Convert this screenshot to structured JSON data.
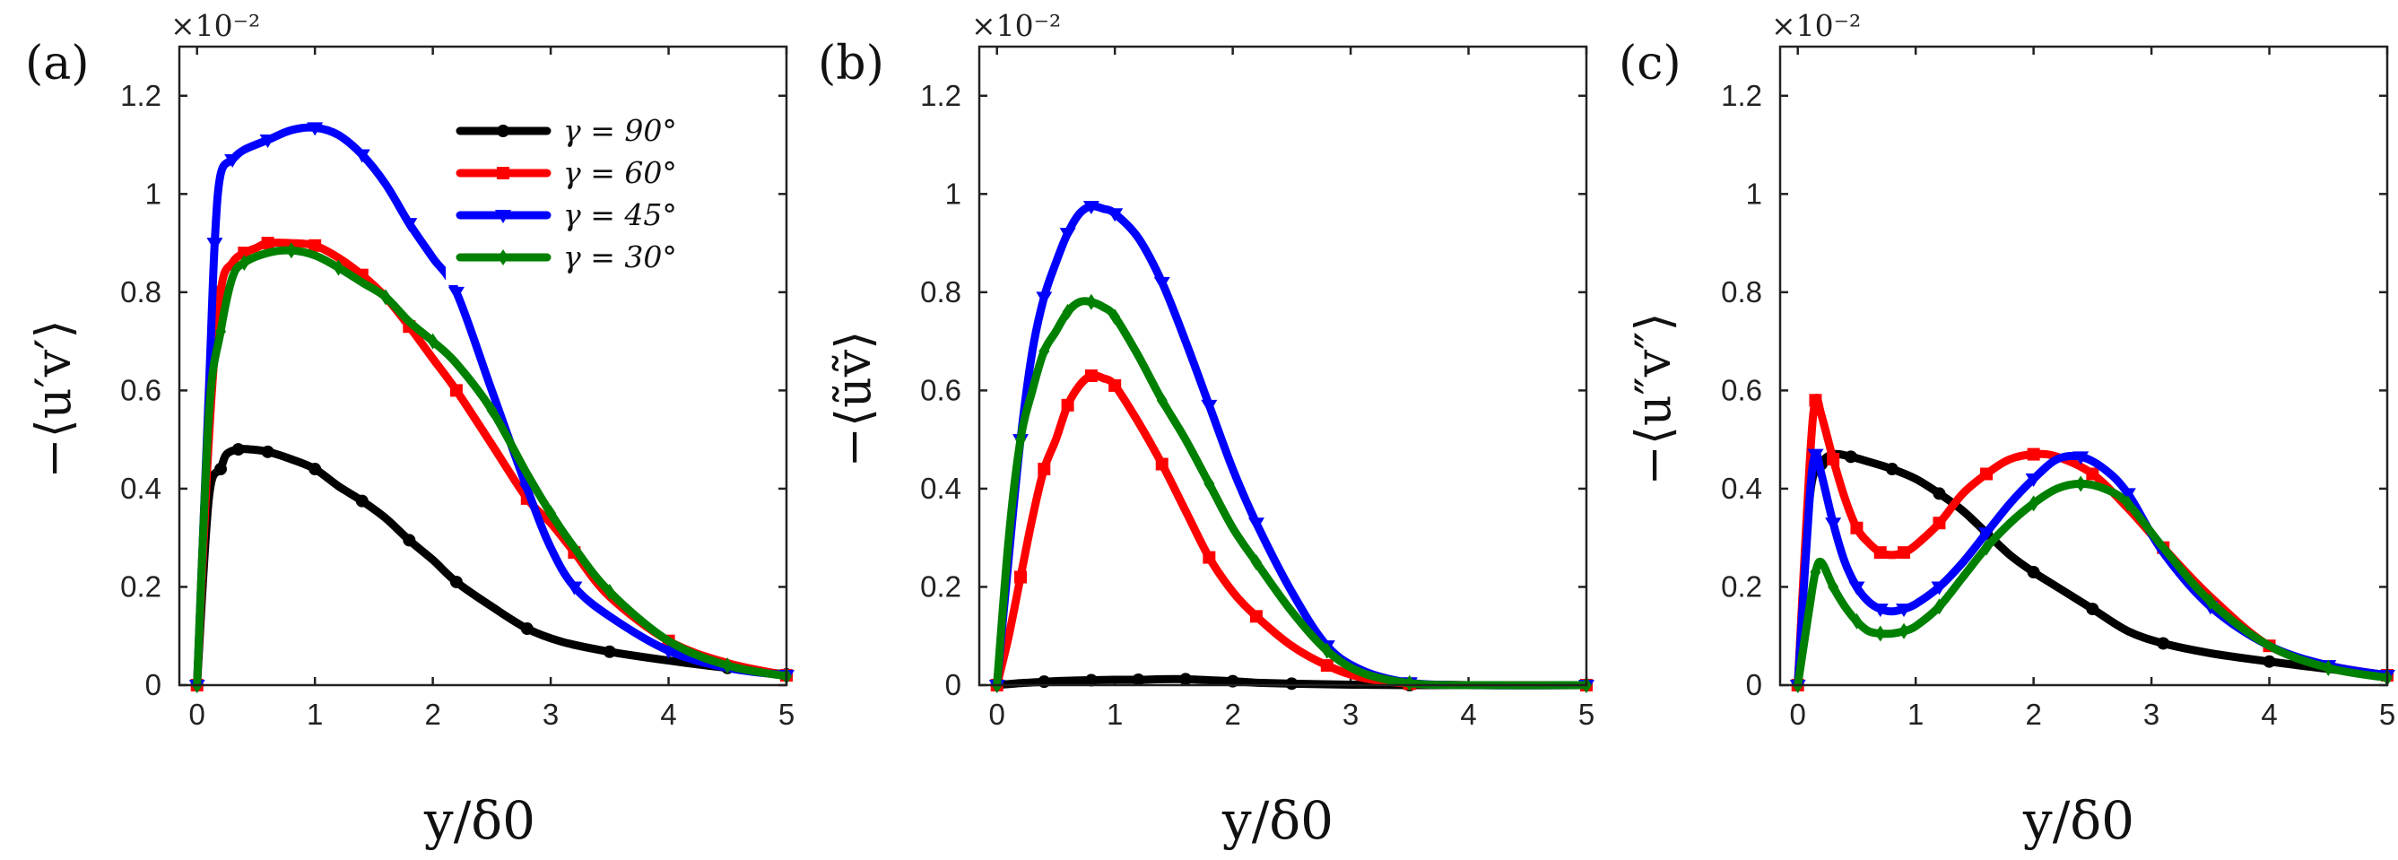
{
  "figure": {
    "legend": {
      "location": "top-right of panel (a)"
    },
    "colors": {
      "g90": "#000000",
      "g60": "#ff0000",
      "g45": "#0000ff",
      "g30": "#008000"
    }
  },
  "chart_data": [
    {
      "type": "line",
      "panel_label": "(a)",
      "title": "",
      "xlabel": "y/δ0",
      "ylabel": "−⟨u′v′⟩",
      "multiplier": "×10⁻²",
      "xlim": [
        -0.15,
        5
      ],
      "ylim": [
        0,
        1.3
      ],
      "xticks": [
        "0",
        "1",
        "2",
        "3",
        "4",
        "5"
      ],
      "yticks": [
        "0",
        "0.2",
        "0.4",
        "0.6",
        "0.8",
        "1",
        "1.2"
      ],
      "series": [
        {
          "name": "γ = 90°",
          "color": "#000000",
          "marker": "circle",
          "x": [
            0,
            0.1,
            0.2,
            0.25,
            0.35,
            0.45,
            0.6,
            0.8,
            1.0,
            1.2,
            1.4,
            1.6,
            1.8,
            2.0,
            2.2,
            2.5,
            2.8,
            3.1,
            3.5,
            4.0,
            4.5,
            5.0
          ],
          "y": [
            0,
            0.38,
            0.44,
            0.47,
            0.48,
            0.48,
            0.475,
            0.46,
            0.44,
            0.405,
            0.375,
            0.34,
            0.295,
            0.255,
            0.21,
            0.16,
            0.115,
            0.088,
            0.068,
            0.05,
            0.035,
            0.022
          ]
        },
        {
          "name": "γ = 60°",
          "color": "#ff0000",
          "marker": "square",
          "x": [
            0,
            0.1,
            0.2,
            0.3,
            0.4,
            0.5,
            0.6,
            0.8,
            1.0,
            1.2,
            1.4,
            1.6,
            1.8,
            2.0,
            2.2,
            2.5,
            2.8,
            3.0,
            3.2,
            3.5,
            4.0,
            4.5,
            5.0
          ],
          "y": [
            0,
            0.5,
            0.8,
            0.86,
            0.88,
            0.89,
            0.9,
            0.9,
            0.895,
            0.87,
            0.835,
            0.79,
            0.73,
            0.665,
            0.6,
            0.49,
            0.38,
            0.33,
            0.27,
            0.18,
            0.09,
            0.045,
            0.02
          ]
        },
        {
          "name": "γ = 45°",
          "color": "#0000ff",
          "marker": "triangle-down",
          "x": [
            0,
            0.1,
            0.15,
            0.2,
            0.3,
            0.4,
            0.6,
            0.8,
            1.0,
            1.2,
            1.4,
            1.6,
            1.8,
            2.0,
            2.2,
            2.5,
            2.8,
            3.0,
            3.2,
            3.5,
            4.0,
            4.5,
            5.0
          ],
          "y": [
            0,
            0.6,
            0.9,
            1.04,
            1.07,
            1.09,
            1.11,
            1.13,
            1.135,
            1.12,
            1.08,
            1.02,
            0.94,
            0.87,
            0.8,
            0.6,
            0.4,
            0.28,
            0.2,
            0.14,
            0.07,
            0.035,
            0.02
          ]
        },
        {
          "name": "γ = 30°",
          "color": "#008000",
          "marker": "diamond",
          "x": [
            0,
            0.1,
            0.2,
            0.3,
            0.4,
            0.6,
            0.8,
            1.0,
            1.2,
            1.4,
            1.6,
            1.8,
            2.0,
            2.2,
            2.5,
            2.8,
            3.0,
            3.2,
            3.5,
            4.0,
            4.5,
            5.0
          ],
          "y": [
            0,
            0.55,
            0.72,
            0.83,
            0.86,
            0.88,
            0.885,
            0.875,
            0.85,
            0.82,
            0.79,
            0.74,
            0.7,
            0.655,
            0.56,
            0.43,
            0.35,
            0.28,
            0.19,
            0.09,
            0.04,
            0.018
          ]
        }
      ]
    },
    {
      "type": "line",
      "panel_label": "(b)",
      "title": "",
      "xlabel": "y/δ0",
      "ylabel": "−⟨ũṽ⟩",
      "multiplier": "×10⁻²",
      "xlim": [
        -0.15,
        5
      ],
      "ylim": [
        0,
        1.3
      ],
      "xticks": [
        "0",
        "1",
        "2",
        "3",
        "4",
        "5"
      ],
      "yticks": [
        "0",
        "0.2",
        "0.4",
        "0.6",
        "0.8",
        "1",
        "1.2"
      ],
      "series": [
        {
          "name": "γ = 90°",
          "color": "#000000",
          "marker": "circle",
          "x": [
            0,
            0.2,
            0.4,
            0.6,
            0.8,
            1.0,
            1.2,
            1.4,
            1.6,
            1.8,
            2.0,
            2.2,
            2.5,
            3.0,
            3.5,
            4.0,
            5.0
          ],
          "y": [
            0,
            0.004,
            0.007,
            0.009,
            0.01,
            0.011,
            0.011,
            0.012,
            0.012,
            0.01,
            0.008,
            0.005,
            0.003,
            0.001,
            0,
            0,
            0
          ]
        },
        {
          "name": "γ = 60°",
          "color": "#ff0000",
          "marker": "square",
          "x": [
            0,
            0.1,
            0.2,
            0.3,
            0.4,
            0.5,
            0.6,
            0.7,
            0.8,
            0.9,
            1.0,
            1.2,
            1.4,
            1.6,
            1.8,
            2.0,
            2.2,
            2.5,
            2.8,
            3.1,
            3.5,
            4.0,
            5.0
          ],
          "y": [
            0,
            0.1,
            0.22,
            0.34,
            0.44,
            0.5,
            0.57,
            0.61,
            0.63,
            0.625,
            0.61,
            0.535,
            0.45,
            0.355,
            0.26,
            0.19,
            0.14,
            0.08,
            0.04,
            0.015,
            0.003,
            0,
            0
          ]
        },
        {
          "name": "γ = 45°",
          "color": "#0000ff",
          "marker": "triangle-down",
          "x": [
            0,
            0.1,
            0.2,
            0.3,
            0.4,
            0.5,
            0.6,
            0.7,
            0.8,
            0.9,
            1.0,
            1.2,
            1.4,
            1.6,
            1.8,
            2.0,
            2.2,
            2.5,
            2.8,
            3.1,
            3.5,
            4.0,
            5.0
          ],
          "y": [
            0,
            0.26,
            0.5,
            0.68,
            0.79,
            0.86,
            0.92,
            0.96,
            0.975,
            0.97,
            0.96,
            0.91,
            0.82,
            0.7,
            0.57,
            0.44,
            0.33,
            0.19,
            0.08,
            0.03,
            0.005,
            0,
            0
          ]
        },
        {
          "name": "γ = 30°",
          "color": "#008000",
          "marker": "diamond",
          "x": [
            0,
            0.1,
            0.2,
            0.3,
            0.4,
            0.5,
            0.6,
            0.7,
            0.8,
            0.9,
            1.0,
            1.2,
            1.4,
            1.6,
            1.8,
            2.0,
            2.2,
            2.5,
            2.8,
            3.1,
            3.5,
            4.0,
            5.0
          ],
          "y": [
            0,
            0.3,
            0.5,
            0.6,
            0.68,
            0.72,
            0.76,
            0.78,
            0.78,
            0.77,
            0.75,
            0.67,
            0.58,
            0.5,
            0.41,
            0.32,
            0.25,
            0.15,
            0.07,
            0.025,
            0.004,
            0,
            0
          ]
        }
      ]
    },
    {
      "type": "line",
      "panel_label": "(c)",
      "title": "",
      "xlabel": "y/δ0",
      "ylabel": "−⟨u″v″⟩",
      "multiplier": "×10⁻²",
      "xlim": [
        -0.15,
        5
      ],
      "ylim": [
        0,
        1.3
      ],
      "xticks": [
        "0",
        "1",
        "2",
        "3",
        "4",
        "5"
      ],
      "yticks": [
        "0",
        "0.2",
        "0.4",
        "0.6",
        "0.8",
        "1",
        "1.2"
      ],
      "series": [
        {
          "name": "γ = 90°",
          "color": "#000000",
          "marker": "circle",
          "x": [
            0,
            0.1,
            0.2,
            0.3,
            0.45,
            0.6,
            0.8,
            1.0,
            1.2,
            1.4,
            1.6,
            1.8,
            2.0,
            2.2,
            2.5,
            2.8,
            3.1,
            3.5,
            4.0,
            4.5,
            5.0
          ],
          "y": [
            0,
            0.38,
            0.45,
            0.47,
            0.465,
            0.455,
            0.44,
            0.42,
            0.39,
            0.355,
            0.31,
            0.265,
            0.23,
            0.2,
            0.155,
            0.11,
            0.085,
            0.065,
            0.048,
            0.033,
            0.02
          ]
        },
        {
          "name": "γ = 60°",
          "color": "#ff0000",
          "marker": "square",
          "x": [
            0,
            0.1,
            0.15,
            0.2,
            0.3,
            0.4,
            0.5,
            0.6,
            0.7,
            0.8,
            0.9,
            1.0,
            1.2,
            1.4,
            1.6,
            1.8,
            2.0,
            2.2,
            2.5,
            2.8,
            3.1,
            3.5,
            4.0,
            4.5,
            5.0
          ],
          "y": [
            0,
            0.45,
            0.58,
            0.55,
            0.46,
            0.38,
            0.32,
            0.29,
            0.27,
            0.265,
            0.27,
            0.285,
            0.33,
            0.39,
            0.43,
            0.46,
            0.47,
            0.465,
            0.43,
            0.36,
            0.28,
            0.18,
            0.08,
            0.04,
            0.02
          ]
        },
        {
          "name": "γ = 45°",
          "color": "#0000ff",
          "marker": "triangle-down",
          "x": [
            0,
            0.1,
            0.15,
            0.2,
            0.3,
            0.4,
            0.5,
            0.6,
            0.7,
            0.8,
            0.9,
            1.0,
            1.2,
            1.4,
            1.6,
            1.8,
            2.0,
            2.2,
            2.4,
            2.6,
            2.8,
            3.1,
            3.5,
            4.0,
            4.5,
            5.0
          ],
          "y": [
            0,
            0.38,
            0.47,
            0.43,
            0.33,
            0.25,
            0.2,
            0.17,
            0.155,
            0.15,
            0.155,
            0.165,
            0.2,
            0.25,
            0.31,
            0.37,
            0.42,
            0.46,
            0.465,
            0.44,
            0.39,
            0.27,
            0.16,
            0.08,
            0.04,
            0.02
          ]
        },
        {
          "name": "γ = 30°",
          "color": "#008000",
          "marker": "diamond",
          "x": [
            0,
            0.1,
            0.15,
            0.2,
            0.3,
            0.4,
            0.5,
            0.6,
            0.7,
            0.8,
            0.9,
            1.0,
            1.2,
            1.4,
            1.6,
            1.8,
            2.0,
            2.2,
            2.4,
            2.6,
            2.8,
            3.1,
            3.5,
            4.0,
            4.5,
            5.0
          ],
          "y": [
            0,
            0.16,
            0.23,
            0.25,
            0.2,
            0.16,
            0.13,
            0.11,
            0.105,
            0.105,
            0.11,
            0.12,
            0.16,
            0.22,
            0.28,
            0.33,
            0.37,
            0.4,
            0.41,
            0.4,
            0.37,
            0.28,
            0.17,
            0.08,
            0.035,
            0.015
          ]
        }
      ]
    }
  ]
}
